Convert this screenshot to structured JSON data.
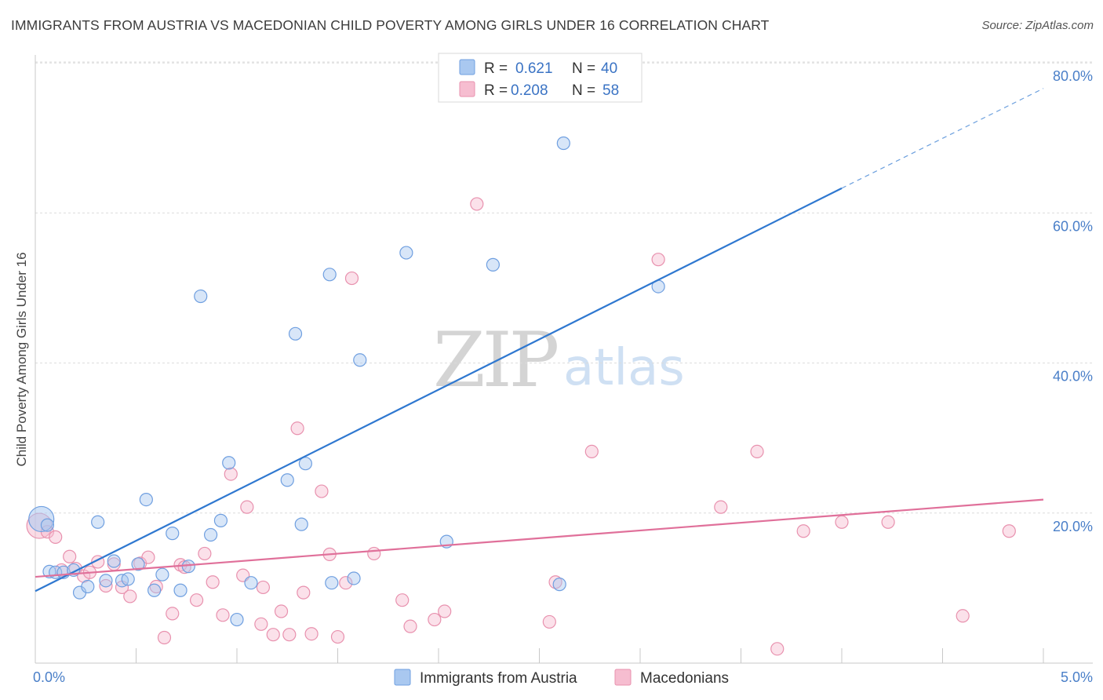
{
  "title": "IMMIGRANTS FROM AUSTRIA VS MACEDONIAN CHILD POVERTY AMONG GIRLS UNDER 16 CORRELATION CHART",
  "source": "Source: ZipAtlas.com",
  "watermark": {
    "zip": "ZIP",
    "atlas": "atlas"
  },
  "colors": {
    "austria_fill": "#a9c8f0",
    "austria_stroke": "#6f9fe0",
    "austria_line": "#2f78d0",
    "macedonian_fill": "#f6bdd0",
    "macedonian_stroke": "#e891ae",
    "macedonian_line": "#e0709a",
    "grid": "#dcdcdc",
    "tick_label": "#4a7fc8"
  },
  "legend": {
    "rows": [
      {
        "r_label": "R =",
        "r_value": "0.621",
        "n_label": "N =",
        "n_value": "40"
      },
      {
        "r_label": "R =",
        "r_value": "0.208",
        "n_label": "N =",
        "n_value": "58"
      }
    ]
  },
  "chart_data": {
    "type": "scatter",
    "title": "IMMIGRANTS FROM AUSTRIA VS MACEDONIAN CHILD POVERTY AMONG GIRLS UNDER 16 CORRELATION CHART",
    "xlabel": "",
    "ylabel": "Child Poverty Among Girls Under 16",
    "xlim": [
      0,
      5
    ],
    "ylim": [
      0,
      80
    ],
    "x_tick_labels": [
      "0.0%",
      "5.0%"
    ],
    "y_ticks": [
      20,
      40,
      60,
      80
    ],
    "y_tick_labels": [
      "20.0%",
      "40.0%",
      "60.0%",
      "80.0%"
    ],
    "grid": true,
    "legend_position": "top-center",
    "series": [
      {
        "name": "Immigrants from Austria",
        "R": 0.621,
        "N": 40,
        "trend": {
          "x0": 0,
          "y0": 9.6,
          "x1": 4,
          "y1": 63.3,
          "dashed_to_x": 5,
          "dashed_to_y": 76.6
        },
        "points": [
          [
            0.03,
            19.2
          ],
          [
            0.07,
            12.2
          ],
          [
            0.1,
            12.1
          ],
          [
            0.14,
            12.1
          ],
          [
            0.19,
            12.4
          ],
          [
            0.22,
            9.4
          ],
          [
            0.26,
            10.2
          ],
          [
            0.31,
            18.8
          ],
          [
            0.35,
            11.0
          ],
          [
            0.39,
            13.6
          ],
          [
            0.43,
            11.0
          ],
          [
            0.46,
            11.2
          ],
          [
            0.51,
            13.2
          ],
          [
            0.55,
            21.8
          ],
          [
            0.59,
            9.7
          ],
          [
            0.63,
            11.8
          ],
          [
            0.68,
            17.3
          ],
          [
            0.72,
            9.7
          ],
          [
            0.76,
            12.9
          ],
          [
            0.82,
            48.9
          ],
          [
            0.87,
            17.1
          ],
          [
            0.92,
            19.0
          ],
          [
            0.96,
            26.7
          ],
          [
            1.0,
            5.8
          ],
          [
            1.07,
            10.7
          ],
          [
            1.25,
            24.4
          ],
          [
            1.29,
            43.9
          ],
          [
            1.32,
            18.5
          ],
          [
            1.34,
            26.6
          ],
          [
            1.46,
            51.8
          ],
          [
            1.47,
            10.7
          ],
          [
            1.58,
            11.3
          ],
          [
            1.61,
            40.4
          ],
          [
            1.84,
            54.7
          ],
          [
            2.04,
            16.2
          ],
          [
            2.27,
            53.1
          ],
          [
            2.6,
            10.5
          ],
          [
            2.62,
            69.3
          ],
          [
            3.09,
            50.2
          ],
          [
            0.06,
            18.4
          ]
        ]
      },
      {
        "name": "Macedonians",
        "R": 0.208,
        "N": 58,
        "trend": {
          "x0": 0,
          "y0": 11.5,
          "x1": 5,
          "y1": 21.8
        },
        "points": [
          [
            0.02,
            18.3
          ],
          [
            0.06,
            17.5
          ],
          [
            0.1,
            16.8
          ],
          [
            0.13,
            12.4
          ],
          [
            0.17,
            14.2
          ],
          [
            0.2,
            12.6
          ],
          [
            0.24,
            11.6
          ],
          [
            0.27,
            12.1
          ],
          [
            0.31,
            13.5
          ],
          [
            0.35,
            10.3
          ],
          [
            0.39,
            13.2
          ],
          [
            0.43,
            10.1
          ],
          [
            0.47,
            8.9
          ],
          [
            0.52,
            13.3
          ],
          [
            0.56,
            14.1
          ],
          [
            0.6,
            10.2
          ],
          [
            0.64,
            3.4
          ],
          [
            0.68,
            6.6
          ],
          [
            0.72,
            13.1
          ],
          [
            0.74,
            12.8
          ],
          [
            0.8,
            8.4
          ],
          [
            0.84,
            14.6
          ],
          [
            0.88,
            10.8
          ],
          [
            0.93,
            6.4
          ],
          [
            0.97,
            25.2
          ],
          [
            1.03,
            11.7
          ],
          [
            1.05,
            20.8
          ],
          [
            1.12,
            5.2
          ],
          [
            1.13,
            10.1
          ],
          [
            1.18,
            3.8
          ],
          [
            1.22,
            6.9
          ],
          [
            1.26,
            3.8
          ],
          [
            1.3,
            31.3
          ],
          [
            1.33,
            9.4
          ],
          [
            1.37,
            3.9
          ],
          [
            1.42,
            22.9
          ],
          [
            1.46,
            14.5
          ],
          [
            1.5,
            3.5
          ],
          [
            1.54,
            10.7
          ],
          [
            1.57,
            51.3
          ],
          [
            1.68,
            14.6
          ],
          [
            1.82,
            8.4
          ],
          [
            1.86,
            4.9
          ],
          [
            1.98,
            5.8
          ],
          [
            2.03,
            6.9
          ],
          [
            2.19,
            61.2
          ],
          [
            2.55,
            5.5
          ],
          [
            2.58,
            10.8
          ],
          [
            2.76,
            28.2
          ],
          [
            3.09,
            53.8
          ],
          [
            3.4,
            20.8
          ],
          [
            3.58,
            28.2
          ],
          [
            3.68,
            1.9
          ],
          [
            3.81,
            17.6
          ],
          [
            4.0,
            18.8
          ],
          [
            4.23,
            18.8
          ],
          [
            4.6,
            6.3
          ],
          [
            4.83,
            17.6
          ]
        ]
      }
    ]
  }
}
